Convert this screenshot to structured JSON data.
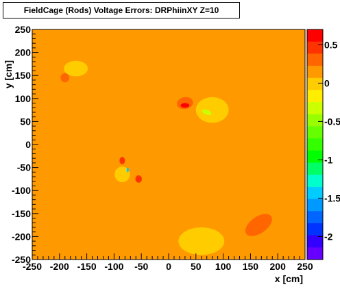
{
  "title": "FieldCage (Rods) Voltage Errors: DRPhiinXY Z=10",
  "chart_data": {
    "type": "heatmap",
    "title": "FieldCage (Rods) Voltage Errors: DRPhiinXY Z=10",
    "xlabel": "x [cm]",
    "ylabel": "y [cm]",
    "xlim": [
      -250,
      250
    ],
    "ylim": [
      -250,
      250
    ],
    "zlim": [
      -2.3,
      0.7
    ],
    "x_ticks": [
      "-250",
      "-200",
      "-150",
      "-100",
      "-50",
      "0",
      "50",
      "100",
      "150",
      "200",
      "250"
    ],
    "y_ticks": [
      "-250",
      "-200",
      "-150",
      "-100",
      "-50",
      "0",
      "50",
      "100",
      "150",
      "200",
      "250"
    ],
    "z_ticks": [
      "0.5",
      "0",
      "-0.5",
      "-1",
      "-1.5",
      "-2"
    ],
    "z_tick_values": [
      0.5,
      0,
      -0.5,
      -1,
      -1.5,
      -2
    ],
    "background_value": 0.1,
    "palette": [
      "#ff0000",
      "#ff3300",
      "#ff6600",
      "#ff9900",
      "#ffcc00",
      "#ffee00",
      "#ccff00",
      "#99ff00",
      "#66ff00",
      "#33ff00",
      "#00ff00",
      "#00ff66",
      "#00ffcc",
      "#00ccff",
      "#0099ff",
      "#0066ff",
      "#0033ff",
      "#3300ff",
      "#6600ff"
    ],
    "features": [
      {
        "name": "upper-left-green",
        "x": -170,
        "y": 165,
        "value": -0.05
      },
      {
        "name": "upper-left-orange",
        "x": -190,
        "y": 145,
        "value": 0.3
      },
      {
        "name": "center-right-orange",
        "x": 30,
        "y": 90,
        "value": 0.35
      },
      {
        "name": "center-right-red",
        "x": 30,
        "y": 85,
        "value": 0.6
      },
      {
        "name": "center-right-green",
        "x": 80,
        "y": 75,
        "value": -0.05
      },
      {
        "name": "center-right-darkgreen",
        "x": 70,
        "y": 70,
        "value": -0.4
      },
      {
        "name": "left-cluster-green",
        "x": -85,
        "y": -65,
        "value": -0.05
      },
      {
        "name": "left-cluster-orange-top",
        "x": -85,
        "y": -35,
        "value": 0.4
      },
      {
        "name": "left-cluster-orange-bottom",
        "x": -55,
        "y": -75,
        "value": 0.4
      },
      {
        "name": "left-cluster-blue",
        "x": -75,
        "y": -55,
        "value": -1.5
      },
      {
        "name": "bottom-right-orange",
        "x": 165,
        "y": -175,
        "value": 0.3
      },
      {
        "name": "bottom-green",
        "x": 60,
        "y": -210,
        "value": -0.05
      }
    ]
  }
}
